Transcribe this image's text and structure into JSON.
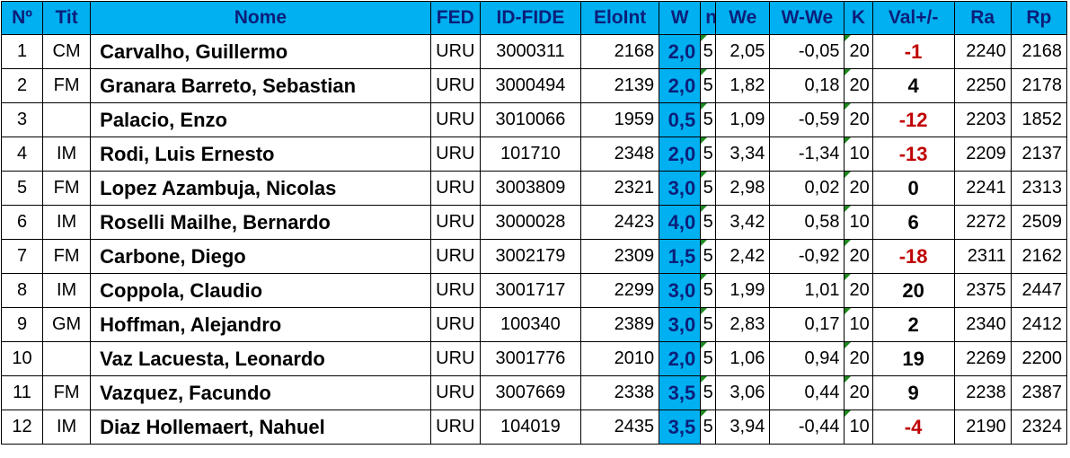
{
  "table": {
    "header": [
      "Nº",
      "Tit",
      "Nome",
      "FED",
      "ID-FIDE",
      "EloInt",
      "W",
      "n",
      "We",
      "W-We",
      "K",
      "Val+/-",
      "Ra",
      "Rp"
    ],
    "rows": [
      [
        "1",
        "CM",
        "Carvalho, Guillermo",
        "URU",
        "3000311",
        "2168",
        "2,0",
        "5",
        "2,05",
        "-0,05",
        "20",
        "-1",
        "2240",
        "2168"
      ],
      [
        "2",
        "FM",
        "Granara Barreto, Sebastian",
        "URU",
        "3000494",
        "2139",
        "2,0",
        "5",
        "1,82",
        "0,18",
        "20",
        "4",
        "2250",
        "2178"
      ],
      [
        "3",
        null,
        "Palacio, Enzo",
        "URU",
        "3010066",
        "1959",
        "0,5",
        "5",
        "1,09",
        "-0,59",
        "20",
        "-12",
        "2203",
        "1852"
      ],
      [
        "4",
        "IM",
        "Rodi, Luis Ernesto",
        "URU",
        "101710",
        "2348",
        "2,0",
        "5",
        "3,34",
        "-1,34",
        "10",
        "-13",
        "2209",
        "2137"
      ],
      [
        "5",
        "FM",
        "Lopez Azambuja, Nicolas",
        "URU",
        "3003809",
        "2321",
        "3,0",
        "5",
        "2,98",
        "0,02",
        "20",
        "0",
        "2241",
        "2313"
      ],
      [
        "6",
        "IM",
        "Roselli Mailhe, Bernardo",
        "URU",
        "3000028",
        "2423",
        "4,0",
        "5",
        "3,42",
        "0,58",
        "10",
        "6",
        "2272",
        "2509"
      ],
      [
        "7",
        "FM",
        "Carbone, Diego",
        "URU",
        "3002179",
        "2309",
        "1,5",
        "5",
        "2,42",
        "-0,92",
        "20",
        "-18",
        "2311",
        "2162"
      ],
      [
        "8",
        "IM",
        "Coppola, Claudio",
        "URU",
        "3001717",
        "2299",
        "3,0",
        "5",
        "1,99",
        "1,01",
        "20",
        "20",
        "2375",
        "2447"
      ],
      [
        "9",
        "GM",
        "Hoffman, Alejandro",
        "URU",
        "100340",
        "2389",
        "3,0",
        "5",
        "2,83",
        "0,17",
        "10",
        "2",
        "2340",
        "2412"
      ],
      [
        "10",
        null,
        "Vaz Lacuesta, Leonardo",
        "URU",
        "3001776",
        "2010",
        "2,0",
        "5",
        "1,06",
        "0,94",
        "20",
        "19",
        "2269",
        "2200"
      ],
      [
        "11",
        "FM",
        "Vazquez, Facundo",
        "URU",
        "3007669",
        "2338",
        "3,5",
        "5",
        "3,06",
        "0,44",
        "20",
        "9",
        "2238",
        "2387"
      ],
      [
        "12",
        "IM",
        "Diaz Hollemaert, Nahuel",
        "URU",
        "104019",
        "2435",
        "3,5",
        "5",
        "3,94",
        "-0,44",
        "10",
        "-4",
        "2190",
        "2324"
      ]
    ]
  }
}
